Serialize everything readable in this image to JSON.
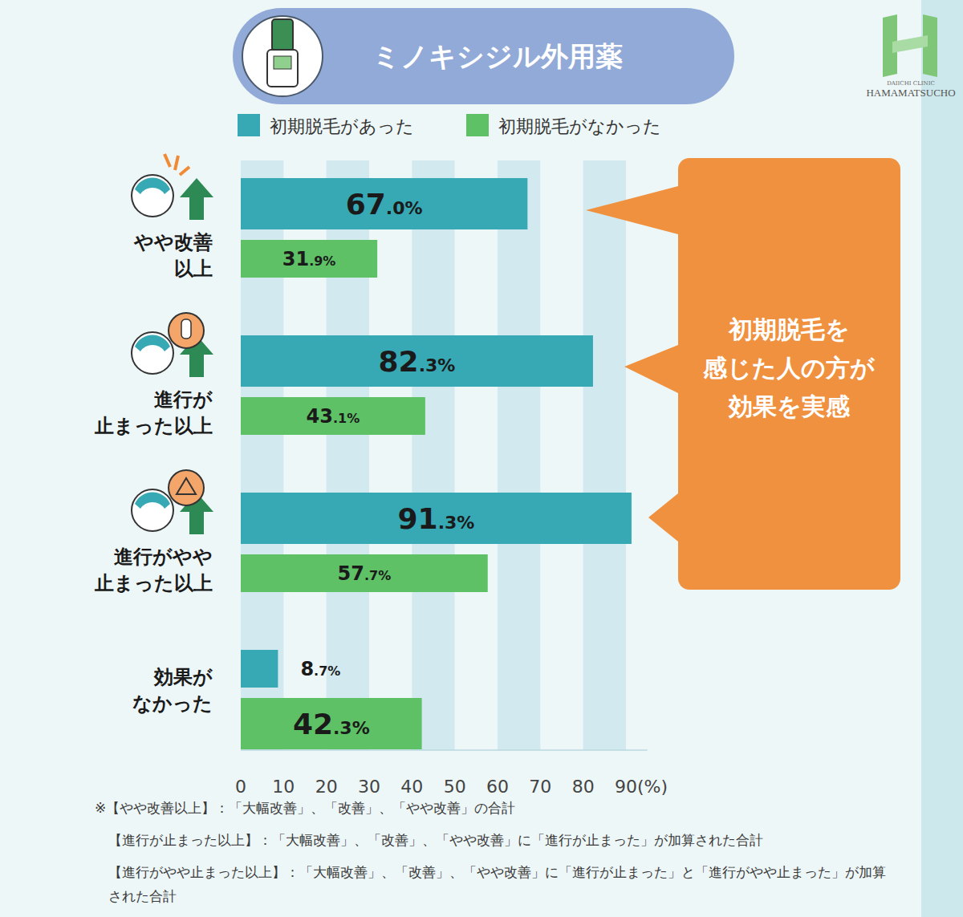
{
  "chart_data": {
    "type": "bar",
    "orientation": "horizontal",
    "title": "ミノキシジル外用薬",
    "categories": [
      "やや改善\n以上",
      "進行が\n止まった以上",
      "進行がやや\n止まった以上",
      "効果が\nなかった"
    ],
    "series": [
      {
        "name": "初期脱毛があった",
        "color": "#37a9b4",
        "values": [
          67.0,
          82.3,
          91.3,
          8.7
        ],
        "value_labels": [
          "67.0%",
          "82.3%",
          "91.3%",
          "8.7%"
        ]
      },
      {
        "name": "初期脱毛がなかった",
        "color": "#5ec166",
        "values": [
          31.9,
          43.1,
          57.7,
          42.3
        ],
        "value_labels": [
          "31.9%",
          "43.1%",
          "57.7%",
          "42.3%"
        ]
      }
    ],
    "xlim": [
      0,
      95
    ],
    "xticks": [
      0,
      10,
      20,
      30,
      40,
      50,
      60,
      70,
      80,
      90
    ],
    "x_label": "(%)",
    "grid": true,
    "legend": "top-left",
    "data_labels": true,
    "annotation": "初期脱毛を\n感じた人の方が\n効果を実感",
    "notes": [
      "※【やや改善以上】：「大幅改善」、「改善」、「やや改善」の合計",
      "【進行が止まった以上】：「大幅改善」、「改善」、「やや改善」に「進行が止まった」が加算された合計",
      "【進行がやや止まった以上】：「大幅改善」、「改善」、「やや改善」に「進行が止まった」と「進行がやや止まった」が加算された合計"
    ],
    "logo": [
      "DAIICHI CLINIC",
      "HAMAMATSUCHO"
    ]
  }
}
